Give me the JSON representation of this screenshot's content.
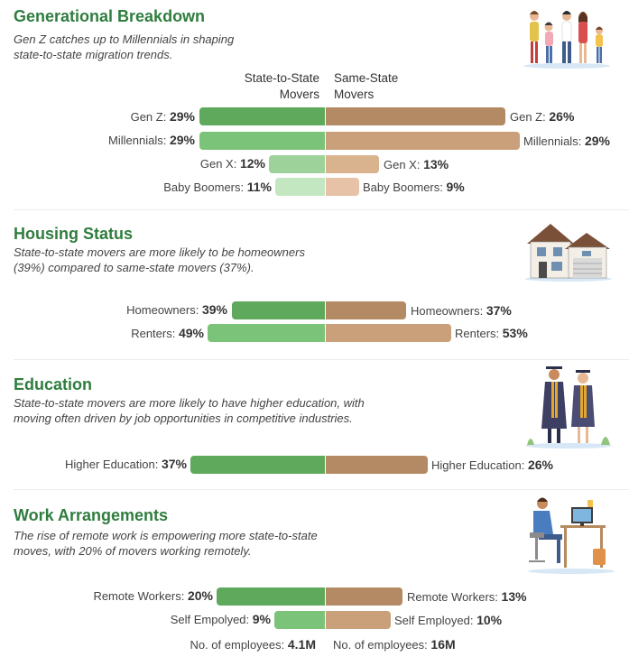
{
  "sections": {
    "generational": {
      "title": "Generational Breakdown",
      "subtitle_line1": "Gen Z catches up to Millennials in shaping",
      "subtitle_line2": "state-to-state migration trends.",
      "col_left_line1": "State-to-State",
      "col_left_line2": "Movers",
      "col_right_line1": "Same-State",
      "col_right_line2": "Movers",
      "rows": [
        {
          "label": "Gen Z:",
          "left": "29%",
          "right": "26%",
          "left_value": 29,
          "right_value": 26
        },
        {
          "label": "Millennials:",
          "left": "29%",
          "right": "29%",
          "left_value": 29,
          "right_value": 29
        },
        {
          "label": "Gen X:",
          "left": "12%",
          "right": "13%",
          "left_value": 12,
          "right_value": 13
        },
        {
          "label": "Baby Boomers:",
          "left": "11%",
          "right": "9%",
          "left_value": 11,
          "right_value": 9
        }
      ]
    },
    "housing": {
      "title": "Housing Status",
      "subtitle_line1": "State-to-state movers are more likely to be homeowners",
      "subtitle_line2": "(39%) compared to same-state movers (37%).",
      "rows": [
        {
          "label": "Homeowners:",
          "left": "39%",
          "right": "37%",
          "left_value": 39,
          "right_value": 37
        },
        {
          "label": "Renters:",
          "left": "49%",
          "right": "53%",
          "left_value": 49,
          "right_value": 53
        }
      ]
    },
    "education": {
      "title": "Education",
      "subtitle_line1": "State-to-state movers are more likely to have higher education, with",
      "subtitle_line2": "moving often driven by job opportunities in competitive industries.",
      "rows": [
        {
          "label": "Higher Education:",
          "left": "37%",
          "right": "26%",
          "left_value": 37,
          "right_value": 26
        }
      ]
    },
    "work": {
      "title": "Work Arrangements",
      "subtitle_line1": "The rise of remote work is empowering more state-to-state",
      "subtitle_line2": "moves, with 20% of movers working remotely.",
      "rows": [
        {
          "label_left": "Remote Workers:",
          "label_right": "Remote Workers:",
          "left": "20%",
          "right": "13%",
          "left_value": 20,
          "right_value": 13
        },
        {
          "label_left": "Self Empolyed:",
          "label_right": "Self Employed:",
          "left": "9%",
          "right": "10%",
          "left_value": 9,
          "right_value": 10
        }
      ],
      "employees": {
        "label": "No. of employees:",
        "left": "4.1M",
        "right": "16M"
      }
    }
  },
  "colors": {
    "title_green": "#2f7d3e",
    "green_bar": "#6db56b",
    "tan_bar": "#c49b74"
  }
}
